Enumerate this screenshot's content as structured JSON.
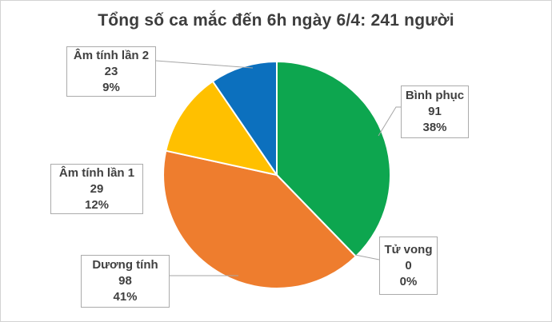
{
  "chart_data": {
    "type": "pie",
    "title": "Tổng số ca mắc đến 6h ngày 6/4: 241 người",
    "total": 241,
    "legend": "none",
    "label_style": "callout-boxes-with-leader-lines",
    "slices": [
      {
        "label": "Bình phục",
        "value": 91,
        "pct": "38%",
        "color": "#0da64f"
      },
      {
        "label": "Tử vong",
        "value": 0,
        "pct": "0%",
        "color": null
      },
      {
        "label": "Dương tính",
        "value": 98,
        "pct": "41%",
        "color": "#ee7d2e"
      },
      {
        "label": "Âm tính lần 1",
        "value": 29,
        "pct": "12%",
        "color": "#ffc000"
      },
      {
        "label": "Âm tính lần 2",
        "value": 23,
        "pct": "9%",
        "color": "#0c70be"
      }
    ]
  },
  "colors": {
    "title_text": "#3d3d3d",
    "label_text": "#404040",
    "box_border": "#ababab",
    "leader_line": "#a6a6a6",
    "canvas_border": "#d3d3d3",
    "slice_gap": "#ffffff"
  }
}
